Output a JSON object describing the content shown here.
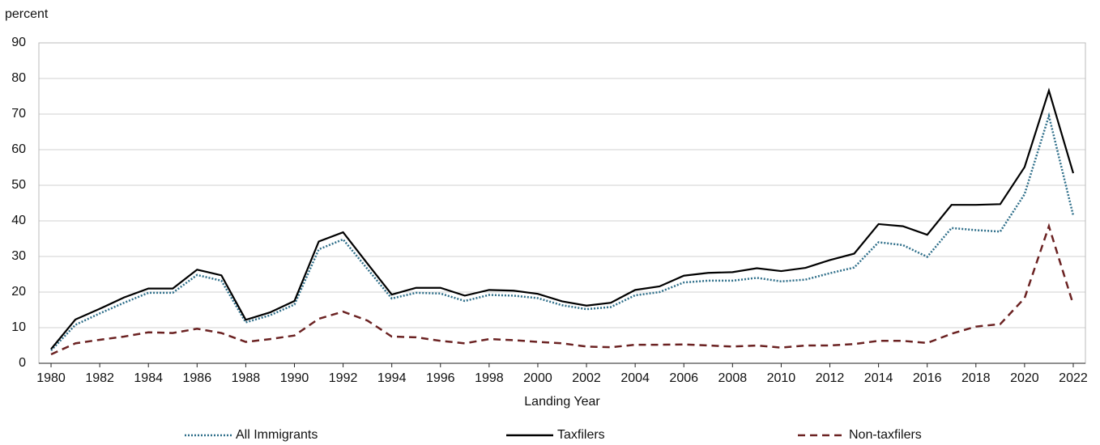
{
  "chart_data": {
    "type": "line",
    "y_unit_label": "percent",
    "x_label": "Landing Year",
    "x": [
      1980,
      1981,
      1982,
      1983,
      1984,
      1985,
      1986,
      1987,
      1988,
      1989,
      1990,
      1991,
      1992,
      1993,
      1994,
      1995,
      1996,
      1997,
      1998,
      1999,
      2000,
      2001,
      2002,
      2003,
      2004,
      2005,
      2006,
      2007,
      2008,
      2009,
      2010,
      2011,
      2012,
      2013,
      2014,
      2015,
      2016,
      2017,
      2018,
      2019,
      2020,
      2021,
      2022
    ],
    "series": [
      {
        "name": "All Immigrants",
        "color": "#2f6f8a",
        "dash": "dotted",
        "values": [
          3.6,
          10.8,
          14,
          17,
          19.8,
          19.8,
          24.8,
          23.2,
          11.5,
          13.5,
          16.5,
          32,
          34.8,
          26.5,
          18.2,
          19.8,
          19.6,
          17.5,
          19.2,
          19,
          18.3,
          16.3,
          15.2,
          15.8,
          19.1,
          20,
          22.7,
          23.2,
          23.2,
          24,
          23,
          23.5,
          25.3,
          26.9,
          34,
          33.2,
          29.9,
          38,
          37.4,
          37,
          47.5,
          69.5,
          41.5
        ]
      },
      {
        "name": "Taxfilers",
        "color": "#000000",
        "dash": "solid",
        "values": [
          4,
          12.3,
          15.3,
          18.5,
          21,
          21,
          26.3,
          24.7,
          12.2,
          14.3,
          17.5,
          34.2,
          36.8,
          28,
          19.3,
          21.2,
          21.2,
          19,
          20.6,
          20.4,
          19.5,
          17.4,
          16.2,
          17,
          20.6,
          21.6,
          24.6,
          25.4,
          25.6,
          26.7,
          25.9,
          26.8,
          29,
          30.8,
          39.1,
          38.5,
          36.1,
          44.5,
          44.5,
          44.7,
          55.1,
          76.6,
          53.4
        ]
      },
      {
        "name": "Non-taxfilers",
        "color": "#6b2222",
        "dash": "dashed",
        "values": [
          2.5,
          5.6,
          6.6,
          7.5,
          8.7,
          8.5,
          9.7,
          8.5,
          6,
          6.8,
          7.8,
          12.5,
          14.5,
          12,
          7.5,
          7.3,
          6.3,
          5.6,
          6.8,
          6.5,
          6,
          5.6,
          4.7,
          4.5,
          5.2,
          5.2,
          5.3,
          5,
          4.7,
          5,
          4.4,
          5,
          5,
          5.4,
          6.3,
          6.3,
          5.7,
          8.3,
          10.3,
          11,
          18.3,
          38.5,
          16.5
        ]
      }
    ],
    "xlim": [
      1979.5,
      2022.5
    ],
    "xticks": [
      1980,
      1982,
      1984,
      1986,
      1988,
      1990,
      1992,
      1994,
      1996,
      1998,
      2000,
      2002,
      2004,
      2006,
      2008,
      2010,
      2012,
      2014,
      2016,
      2018,
      2020,
      2022
    ],
    "ylim": [
      0,
      90
    ],
    "yticks": [
      0,
      10,
      20,
      30,
      40,
      50,
      60,
      70,
      80,
      90
    ],
    "grid": true,
    "legend": "bottom"
  }
}
